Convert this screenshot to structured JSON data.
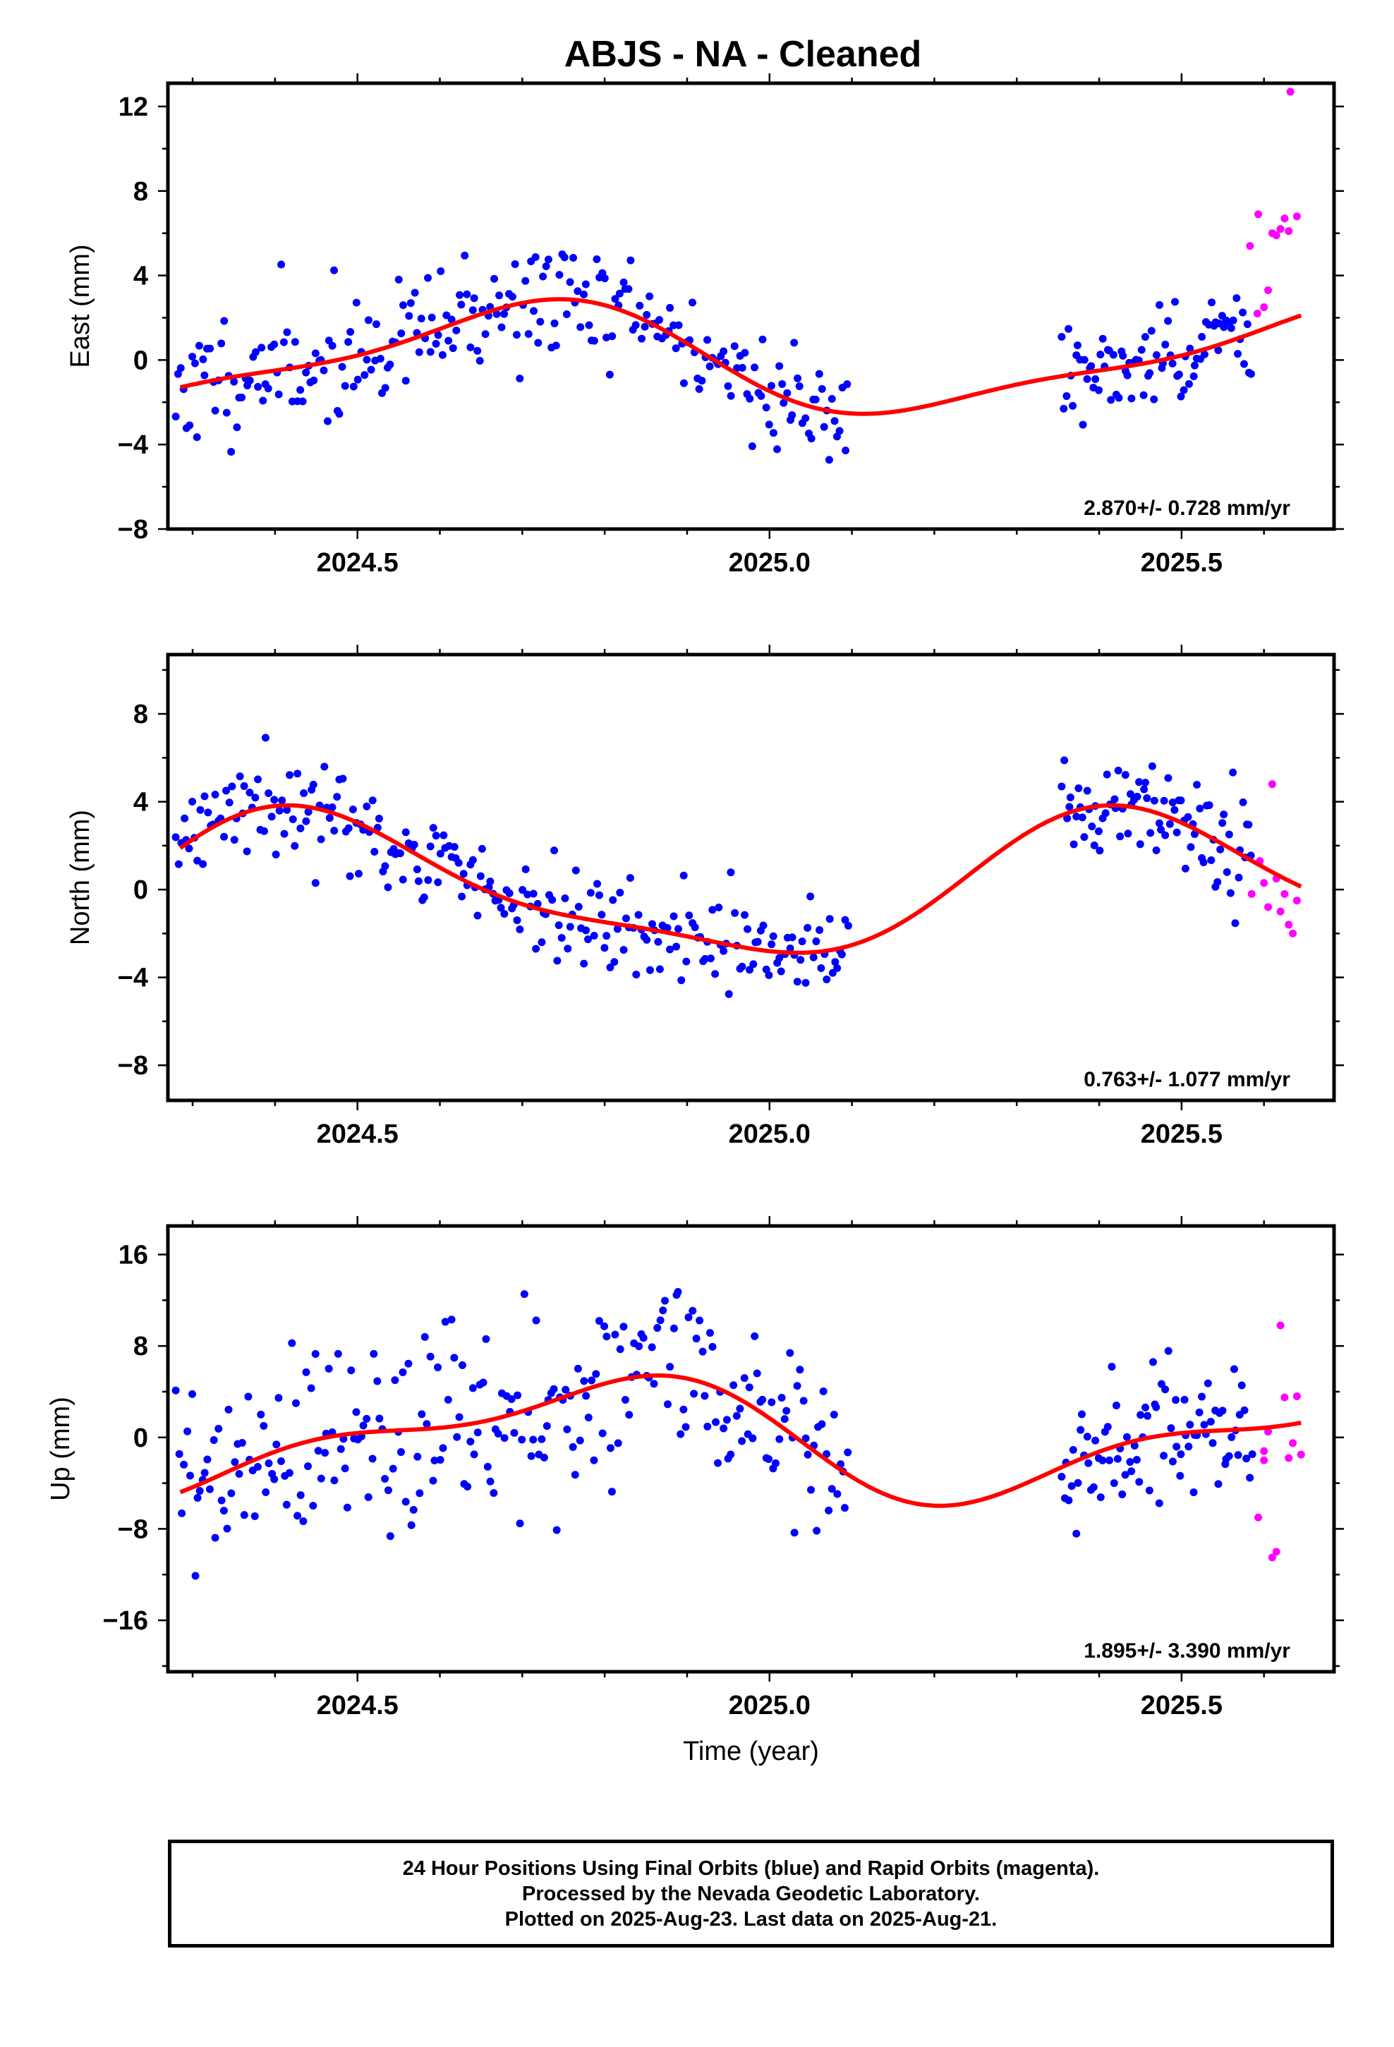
{
  "title": "ABJS  - NA - Cleaned",
  "colors": {
    "final": "#0000ff",
    "rapid": "#ff00ff",
    "model": "#ff0000",
    "frame": "#000000"
  },
  "chart_data": [
    {
      "type": "scatter",
      "ylabel": "East (mm)",
      "xlabel": "",
      "xlim": [
        2024.27,
        2025.685
      ],
      "ylim": [
        -8,
        13.1
      ],
      "xticks": [
        2024.5,
        2025.0,
        2025.5
      ],
      "xtick_labels": [
        "2024.5",
        "2025.0",
        "2025.5"
      ],
      "yticks": [
        -8,
        -4,
        0,
        4,
        8,
        12
      ],
      "ytick_labels": [
        "−8",
        "−4",
        "0",
        "4",
        "8",
        "12"
      ],
      "rate_label": "2.870+/- 0.728 mm/yr",
      "model": {
        "name": "fit",
        "amp1": 2.4,
        "phase1": 3.5,
        "amp2": 0.72,
        "phase2": 4.2
      },
      "series": [
        {
          "kind": "final",
          "x0": 2024.28,
          "x1": 2025.095,
          "count": 255,
          "seed": 11,
          "noise": 1.4
        },
        {
          "kind": "final",
          "x0": 2025.355,
          "x1": 2025.585,
          "count": 85,
          "seed": 12,
          "noise": 1.35
        },
        {
          "kind": "rapid",
          "points": [
            [
              2025.593,
              6.9
            ],
            [
              2025.592,
              2.2
            ],
            [
              2025.6,
              2.5
            ],
            [
              2025.605,
              3.3
            ],
            [
              2025.61,
              6.0
            ],
            [
              2025.615,
              5.9
            ],
            [
              2025.62,
              6.2
            ],
            [
              2025.625,
              6.7
            ],
            [
              2025.63,
              6.1
            ],
            [
              2025.64,
              6.8
            ],
            [
              2025.632,
              12.7
            ],
            [
              2025.583,
              5.4
            ]
          ]
        }
      ]
    },
    {
      "type": "scatter",
      "ylabel": "North (mm)",
      "xlabel": "",
      "xlim": [
        2024.27,
        2025.685
      ],
      "ylim": [
        -9.6,
        10.7
      ],
      "xticks": [
        2024.5,
        2025.0,
        2025.5
      ],
      "xtick_labels": [
        "2024.5",
        "2025.0",
        "2025.5"
      ],
      "yticks": [
        -8,
        -4,
        0,
        4,
        8
      ],
      "ytick_labels": [
        "−8",
        "−4",
        "0",
        "4",
        "8"
      ],
      "rate_label": "0.763+/- 1.077 mm/yr",
      "model": {
        "name": "fit",
        "amp1": 3.1,
        "phase1": 5.05,
        "amp2": 0.85,
        "phase2": 3.0
      },
      "series": [
        {
          "kind": "final",
          "x0": 2024.28,
          "x1": 2025.095,
          "count": 255,
          "seed": 21,
          "noise": 1.1
        },
        {
          "kind": "final",
          "x0": 2025.355,
          "x1": 2025.585,
          "count": 85,
          "seed": 22,
          "noise": 1.1
        },
        {
          "kind": "rapid",
          "points": [
            [
              2025.595,
              1.3
            ],
            [
              2025.6,
              0.3
            ],
            [
              2025.61,
              4.8
            ],
            [
              2025.615,
              0.5
            ],
            [
              2025.62,
              -1.0
            ],
            [
              2025.625,
              -0.2
            ],
            [
              2025.63,
              -1.6
            ],
            [
              2025.635,
              -2.0
            ],
            [
              2025.64,
              -0.5
            ],
            [
              2025.605,
              -0.8
            ],
            [
              2025.585,
              -0.2
            ]
          ]
        }
      ]
    },
    {
      "type": "scatter",
      "ylabel": "Up (mm)",
      "xlabel": "Time (year)",
      "xlim": [
        2024.27,
        2025.685
      ],
      "ylim": [
        -20.5,
        18.5
      ],
      "xticks": [
        2024.5,
        2025.0,
        2025.5
      ],
      "xtick_labels": [
        "2024.5",
        "2025.0",
        "2025.5"
      ],
      "yticks": [
        -16,
        -8,
        0,
        8,
        16
      ],
      "ytick_labels": [
        "−16",
        "−8",
        "0",
        "8",
        "16"
      ],
      "rate_label": "1.895+/- 3.390 mm/yr",
      "model": {
        "name": "fit",
        "amp1": 4.6,
        "phase1": 3.0,
        "amp2": 2.0,
        "phase2": 2.6
      },
      "series": [
        {
          "kind": "final",
          "x0": 2024.28,
          "x1": 2025.095,
          "count": 255,
          "seed": 31,
          "noise": 4.3
        },
        {
          "kind": "final",
          "x0": 2025.355,
          "x1": 2025.585,
          "count": 85,
          "seed": 32,
          "noise": 3.6
        },
        {
          "kind": "rapid",
          "points": [
            [
              2025.593,
              -7.0
            ],
            [
              2025.6,
              -2.0
            ],
            [
              2025.605,
              0.5
            ],
            [
              2025.61,
              -10.5
            ],
            [
              2025.615,
              -10.0
            ],
            [
              2025.62,
              9.8
            ],
            [
              2025.625,
              3.5
            ],
            [
              2025.63,
              -1.8
            ],
            [
              2025.635,
              -0.5
            ],
            [
              2025.64,
              3.6
            ],
            [
              2025.645,
              -1.5
            ],
            [
              2025.6,
              -1.2
            ]
          ]
        }
      ]
    }
  ],
  "footer": {
    "line1": "24 Hour Positions Using Final Orbits (blue) and Rapid Orbits (magenta).",
    "line2": "Processed by the Nevada Geodetic Laboratory.",
    "line3": "Plotted on 2025-Aug-23. Last data on 2025-Aug-21."
  }
}
